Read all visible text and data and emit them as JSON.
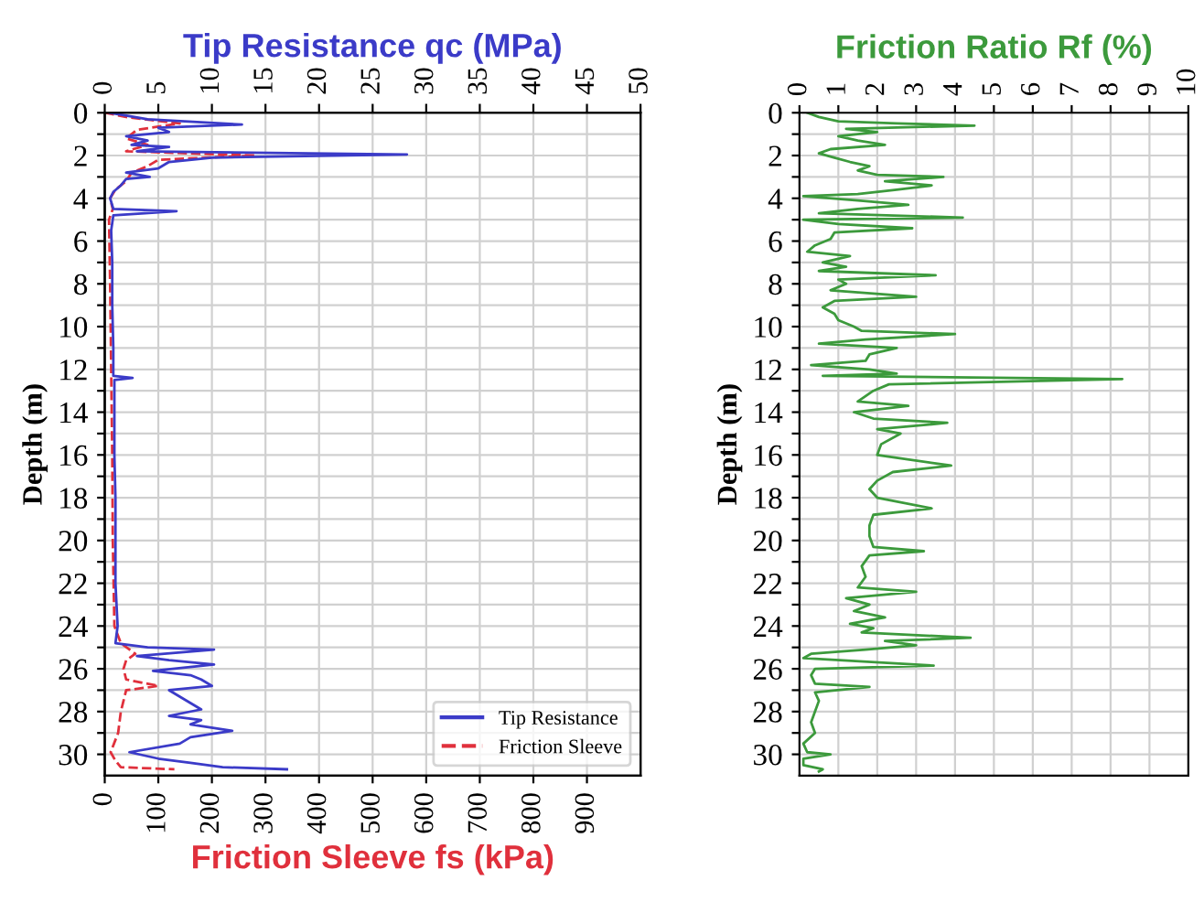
{
  "chart_data": [
    {
      "type": "line",
      "orientation": "horizontal",
      "xlabel": "Friction Sleeve fs (kPa)",
      "x2label": "Tip Resistance qc (MPa)",
      "ylabel": "Depth (m)",
      "xlim": [
        0,
        1000
      ],
      "xticks": [
        0,
        100,
        200,
        300,
        400,
        500,
        600,
        700,
        800,
        900
      ],
      "x2lim": [
        0,
        50
      ],
      "x2ticks": [
        0,
        5,
        10,
        15,
        20,
        25,
        30,
        35,
        40,
        45,
        50
      ],
      "ylim": [
        31,
        0
      ],
      "yticks": [
        0,
        {
          "value": 1,
          "label": null
        },
        2,
        {
          "value": 3,
          "label": null
        },
        4,
        {
          "value": 5,
          "label": null
        },
        6,
        {
          "value": 7,
          "label": null
        },
        8,
        {
          "value": 9,
          "label": null
        },
        10,
        {
          "value": 11,
          "label": null
        },
        12,
        {
          "value": 13,
          "label": null
        },
        14,
        {
          "value": 15,
          "label": null
        },
        16,
        {
          "value": 17,
          "label": null
        },
        18,
        {
          "value": 19,
          "label": null
        },
        20,
        {
          "value": 21,
          "label": null
        },
        22,
        {
          "value": 23,
          "label": null
        },
        24,
        {
          "value": 25,
          "label": null
        },
        26,
        {
          "value": 27,
          "label": null
        },
        28,
        {
          "value": 29,
          "label": null
        },
        30
      ],
      "grid": true,
      "legend": "bottom right",
      "series": [
        {
          "name": "Tip Resistance",
          "color": "#3b3bc8",
          "axis": "x2",
          "line_style": "solid",
          "x": [
            0,
            0.3,
            0.55,
            0.7,
            0.9,
            1.1,
            1.3,
            1.5,
            1.6,
            1.8,
            1.95,
            2.1,
            2.3,
            2.6,
            2.8,
            3.0,
            3.1,
            3.4,
            3.7,
            4.0,
            4.5,
            4.6,
            4.8,
            5.5,
            7,
            9,
            11,
            12.3,
            12.4,
            12.5,
            14,
            16,
            18,
            20,
            22,
            24,
            24.8,
            25.0,
            25.1,
            25.4,
            25.6,
            25.8,
            26.1,
            26.3,
            26.5,
            26.8,
            27.0,
            27.3,
            27.6,
            27.9,
            28.2,
            28.4,
            28.6,
            28.9,
            29.2,
            29.5,
            29.9,
            30.2,
            30.4,
            30.6,
            30.7
          ],
          "values": [
            0.5,
            4,
            12.8,
            5,
            6,
            2,
            4,
            2.5,
            6,
            3,
            28.2,
            10,
            6,
            5,
            2,
            4.2,
            2,
            1.5,
            0.8,
            0.5,
            0.8,
            6.7,
            0.8,
            0.6,
            0.7,
            0.7,
            0.8,
            0.8,
            2.6,
            0.9,
            0.9,
            0.9,
            1.0,
            1.0,
            1.0,
            1.2,
            1,
            4,
            10.2,
            3,
            6,
            10.2,
            4.5,
            8,
            9,
            10,
            6,
            7,
            8,
            9,
            6,
            9,
            8,
            11.9,
            8,
            7,
            2.3,
            5,
            8,
            11,
            17
          ]
        },
        {
          "name": "Friction Sleeve",
          "color": "#e0303c",
          "line_style": "dashed",
          "x": [
            0,
            0.2,
            0.5,
            0.8,
            1.2,
            1.5,
            1.8,
            2.0,
            2.2,
            2.5,
            2.8,
            3.2,
            3.6,
            4.0,
            4.5,
            5,
            8,
            12,
            16,
            20,
            24,
            24.8,
            25.3,
            25.6,
            26.0,
            26.5,
            26.8,
            27.0,
            27.5,
            28,
            29,
            29.9,
            30.3,
            30.6,
            30.7
          ],
          "values": [
            0,
            40,
            140,
            60,
            40,
            80,
            40,
            280,
            100,
            80,
            50,
            40,
            20,
            10,
            15,
            8,
            10,
            12,
            14,
            15,
            18,
            30,
            57,
            40,
            35,
            40,
            100,
            40,
            35,
            30,
            25,
            11,
            20,
            30,
            130
          ]
        }
      ]
    },
    {
      "type": "line",
      "orientation": "horizontal",
      "xlabel": "Friction Ratio Rf (%)",
      "ylabel": "Depth (m)",
      "xlim": [
        0,
        10
      ],
      "xticks": [
        0,
        1,
        2,
        3,
        4,
        5,
        6,
        7,
        8,
        9,
        10
      ],
      "ylim": [
        31,
        0
      ],
      "yticks": [
        0,
        {
          "value": 1,
          "label": null
        },
        2,
        {
          "value": 3,
          "label": null
        },
        4,
        {
          "value": 5,
          "label": null
        },
        6,
        {
          "value": 7,
          "label": null
        },
        8,
        {
          "value": 9,
          "label": null
        },
        10,
        {
          "value": 11,
          "label": null
        },
        12,
        {
          "value": 13,
          "label": null
        },
        14,
        {
          "value": 15,
          "label": null
        },
        16,
        {
          "value": 17,
          "label": null
        },
        18,
        {
          "value": 19,
          "label": null
        },
        20,
        {
          "value": 21,
          "label": null
        },
        22,
        {
          "value": 23,
          "label": null
        },
        24,
        {
          "value": 25,
          "label": null
        },
        26,
        {
          "value": 27,
          "label": null
        },
        28,
        {
          "value": 29,
          "label": null
        },
        30
      ],
      "grid": true,
      "series": [
        {
          "color": "#3c9a3c",
          "line_style": "solid",
          "x": [
            0,
            0.2,
            0.4,
            0.5,
            0.6,
            0.75,
            0.9,
            1.1,
            1.3,
            1.5,
            1.7,
            1.9,
            2.1,
            2.3,
            2.5,
            2.7,
            2.9,
            3.0,
            3.2,
            3.4,
            3.6,
            3.8,
            3.9,
            4.1,
            4.3,
            4.5,
            4.7,
            4.9,
            5.0,
            5.2,
            5.4,
            5.6,
            5.9,
            6.2,
            6.5,
            6.7,
            7.0,
            7.2,
            7.4,
            7.6,
            7.8,
            8.0,
            8.3,
            8.6,
            8.8,
            9.1,
            9.4,
            9.7,
            10.0,
            10.2,
            10.35,
            10.6,
            10.8,
            11.0,
            11.3,
            11.6,
            11.8,
            12.0,
            12.2,
            12.3,
            12.45,
            12.7,
            13.0,
            13.5,
            13.7,
            14.0,
            14.3,
            14.5,
            14.8,
            15.0,
            15.5,
            16.0,
            16.5,
            16.8,
            17.2,
            17.6,
            18.0,
            18.5,
            18.8,
            19.3,
            19.8,
            20.3,
            20.5,
            20.7,
            21.2,
            21.7,
            22.2,
            22.4,
            22.7,
            23.0,
            23.3,
            23.6,
            23.9,
            24.1,
            24.3,
            24.55,
            24.7,
            24.9,
            25.1,
            25.3,
            25.5,
            25.85,
            26.0,
            26.3,
            26.7,
            26.85,
            27.1,
            27.5,
            28.0,
            28.5,
            29.0,
            29.5,
            29.9,
            30.0,
            30.2,
            30.5,
            30.7,
            30.8
          ],
          "values": [
            0.2,
            0.5,
            1.0,
            2.5,
            4.5,
            1.2,
            2.0,
            1.0,
            1.5,
            2.2,
            0.8,
            0.5,
            0.9,
            1.3,
            1.8,
            1.5,
            2.0,
            3.7,
            2.2,
            3.4,
            2.5,
            1.5,
            0.1,
            1.5,
            2.8,
            1.5,
            0.5,
            4.2,
            0.1,
            1.0,
            2.9,
            0.9,
            0.8,
            0.4,
            0.2,
            1.3,
            0.6,
            1.2,
            0.5,
            3.5,
            1.0,
            1.2,
            0.8,
            3.0,
            0.9,
            0.6,
            0.9,
            1.0,
            1.4,
            1.6,
            4.0,
            1.7,
            0.5,
            2.5,
            1.8,
            1.7,
            0.3,
            1.8,
            2.5,
            0.6,
            8.3,
            2.3,
            1.9,
            1.5,
            2.8,
            1.4,
            1.9,
            3.8,
            2.0,
            2.6,
            2.1,
            2.0,
            3.9,
            2.4,
            2.0,
            1.8,
            2.0,
            3.4,
            1.9,
            1.8,
            1.8,
            1.9,
            3.2,
            1.8,
            1.6,
            1.7,
            1.5,
            3.0,
            1.2,
            1.8,
            1.4,
            2.2,
            1.3,
            1.9,
            1.6,
            4.4,
            2.2,
            3.0,
            1.7,
            0.3,
            0.1,
            3.45,
            0.4,
            0.3,
            0.4,
            1.8,
            0.4,
            0.5,
            0.4,
            0.3,
            0.4,
            0.1,
            0.2,
            0.8,
            0.1,
            0.1,
            0.6,
            0.5
          ]
        }
      ]
    }
  ]
}
